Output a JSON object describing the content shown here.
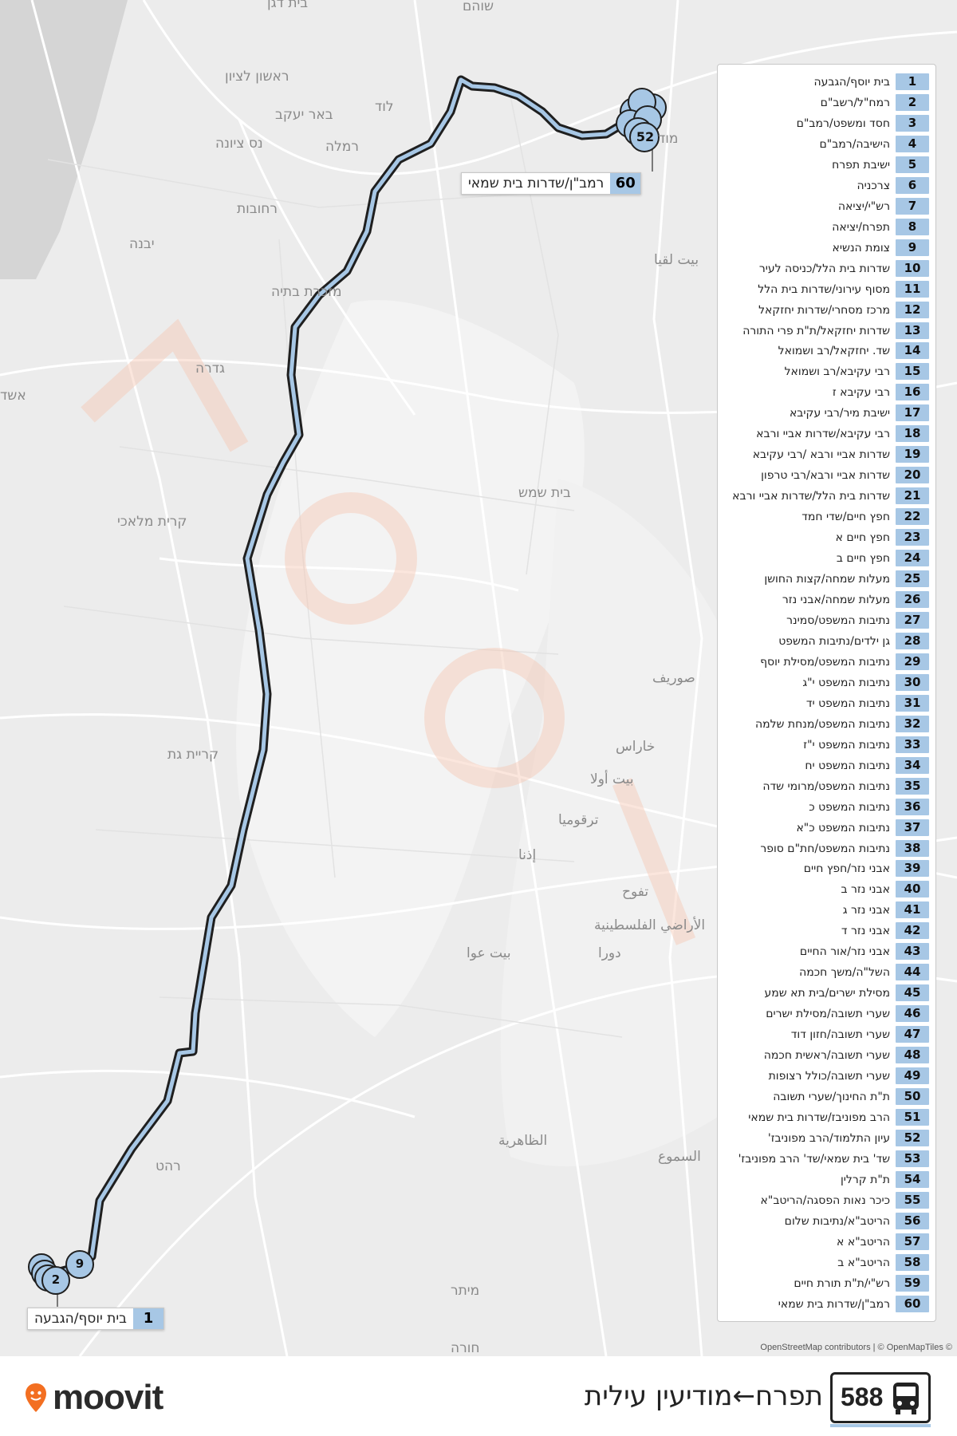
{
  "route": {
    "number": "588",
    "title": "תפרח←מודיעין עילית",
    "brand": "moovit",
    "accent_color": "#a7c7e5",
    "line_color": "#1f1f1f"
  },
  "attribution": "OpenStreetMap contributors | © OpenMapTiles ©",
  "start_label": {
    "num": "1",
    "name": "בית יוסף/הגבעה"
  },
  "end_label": {
    "num": "60",
    "name": "רמב\"ן/שדרות בית שמאי"
  },
  "cluster_labels": {
    "start_stop": "2",
    "near_start": "9",
    "end_cluster": "52"
  },
  "towns": [
    {
      "id": "beit-dagan",
      "name": "בית דגן"
    },
    {
      "id": "shoham",
      "name": "שוהם"
    },
    {
      "id": "rishon",
      "name": "ראשון לציון"
    },
    {
      "id": "beer-yaakov",
      "name": "באר יעקב"
    },
    {
      "id": "lod",
      "name": "לוד"
    },
    {
      "id": "nes-ziona",
      "name": "נס ציונה"
    },
    {
      "id": "ramla",
      "name": "רמלה"
    },
    {
      "id": "rehovot",
      "name": "רחובות"
    },
    {
      "id": "yavne",
      "name": "יבנה"
    },
    {
      "id": "modiin",
      "name": "מוד"
    },
    {
      "id": "beit-liqya",
      "name": "بيت لقيا"
    },
    {
      "id": "mazkeret",
      "name": "מזכרת בתיה"
    },
    {
      "id": "gedera",
      "name": "גדרה"
    },
    {
      "id": "ashdod",
      "name": "אשד"
    },
    {
      "id": "beit-shemesh",
      "name": "בית שמש"
    },
    {
      "id": "kiryat-malachi",
      "name": "קרית מלאכי"
    },
    {
      "id": "surif",
      "name": "صوريف"
    },
    {
      "id": "kiryat-gat",
      "name": "קריית גת"
    },
    {
      "id": "kharas",
      "name": "خاراس"
    },
    {
      "id": "beit-ula",
      "name": "بيت أولا"
    },
    {
      "id": "tarqumiya",
      "name": "ترقوميا"
    },
    {
      "id": "idhna",
      "name": "إذنا"
    },
    {
      "id": "taffuh",
      "name": "تفوح"
    },
    {
      "id": "palestinian",
      "name": "الأراضي الفلسطينية"
    },
    {
      "id": "beit-awwa",
      "name": "بيت عوا"
    },
    {
      "id": "dura",
      "name": "دورا"
    },
    {
      "id": "dhahiriya",
      "name": "الظاهرية"
    },
    {
      "id": "samu",
      "name": "السموع"
    },
    {
      "id": "rahat",
      "name": "רהט"
    },
    {
      "id": "meitar",
      "name": "מיתר"
    },
    {
      "id": "hura",
      "name": "חורה"
    }
  ],
  "stops": [
    "בית יוסף/הגבעה",
    "רמח\"ל/רשב\"ם",
    "חסד ומשפט/רמב\"ם",
    "הישיבה/רמב\"ם",
    "ישיבת תפרח",
    "צרכניה",
    "רש\"י/יציאה",
    "תפרח/יציאה",
    "צומת הנשיא",
    "שדרות בית הלל/כניסה לעיר",
    "מסוף עירוני/שדרות בית הלל",
    "מרכז מסחרי/שדרות יחזקאל",
    "שדרות יחזקאל/ת\"ת פרי התורה",
    "שד. יחזקאל/רב ושמואל",
    "רבי עקיבא/רב ושמואל",
    "רבי עקיבא ז",
    "ישיבת מיר/רבי עקיבא",
    "רבי עקיבא/שדרות אביי ורבא",
    "שדרות אביי ורבא /רבי עקיבא",
    "שדרות אביי ורבא/רבי טרפון",
    "שדרות בית הלל/שדרות אביי ורבא",
    "חפץ חיים/שדי חמד",
    "חפץ חיים א",
    "חפץ חיים ב",
    "מעלות שמחה/קצות החושן",
    "מעלות שמחה/אבני נזר",
    "נתיבות המשפט/סמינר",
    "גן ילדים/נתיבות המשפט",
    "נתיבות המשפט/מסילת יוסף",
    "נתיבות המשפט י\"ג",
    "נתיבות המשפט יד",
    "נתיבות המשפט/מנחת שלמה",
    "נתיבות המשפט י\"ז",
    "נתיבות המשפט יח",
    "נתיבות המשפט/מרומי שדה",
    "נתיבות המשפט כ",
    "נתיבות המשפט כ\"א",
    "נתיבות המשפט/חת\"ם סופר",
    "אבני נזר/חפץ חיים",
    "אבני נזר ב",
    "אבני נזר ג",
    "אבני נזר ד",
    "אבני נזר/אור החיים",
    "השל\"ה/משך חכמה",
    "מסילת ישרים/בית תא שמע",
    "שערי תשובה/מסילת ישרים",
    "שערי תשובה/חזון דוד",
    "שערי תשובה/ראשית חכמה",
    "שערי תשובה/כולל רצופות",
    "ת\"ת החינוך/שערי תשובה",
    "הרב מפוניבז/שדרות בית שמאי",
    "עיון התלמוד/הרב מפוניבז'",
    "שד' בית שמאי/שד' הרב מפוניבז'",
    "ת\"ת קרלין",
    "כיכר נאות הפסגה/הריטב\"א",
    "הריטב\"א/נתיבות שלום",
    "הריטב\"א א",
    "הריטב\"א ב",
    "רש\"י/ת\"ת תורת חיים",
    "רמב\"ן/שדרות בית שמאי"
  ]
}
